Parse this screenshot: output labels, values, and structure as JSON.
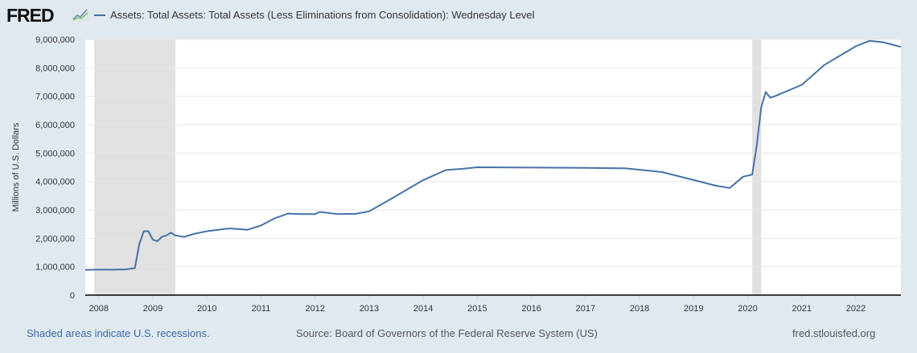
{
  "header": {
    "logo": "FRED",
    "logo_icon": "fred-chart-icon"
  },
  "footer": {
    "recession_note": "Shaded areas indicate U.S. recessions.",
    "source": "Source: Board of Governors of the Federal Reserve System (US)",
    "site": "fred.stlouisfed.org"
  },
  "colors": {
    "series": "#4572a7",
    "recession": "#e1e1e1",
    "background": "#e1e9f0",
    "link": "#3a6aa8"
  },
  "chart_data": {
    "type": "line",
    "title": "",
    "xlabel": "",
    "ylabel": "Millions of U.S. Dollars",
    "xlim": [
      "2007-10",
      "2022-11"
    ],
    "ylim": [
      0,
      9000000
    ],
    "grid": true,
    "legend_position": "top-left",
    "x_ticks": [
      "2008",
      "2009",
      "2010",
      "2011",
      "2012",
      "2013",
      "2014",
      "2015",
      "2016",
      "2017",
      "2018",
      "2019",
      "2020",
      "2021",
      "2022"
    ],
    "y_ticks": [
      "0",
      "1,000,000",
      "2,000,000",
      "3,000,000",
      "4,000,000",
      "5,000,000",
      "6,000,000",
      "7,000,000",
      "8,000,000",
      "9,000,000"
    ],
    "recessions": [
      [
        "2007-12",
        "2009-06"
      ],
      [
        "2020-02",
        "2020-04"
      ]
    ],
    "series": [
      {
        "name": "Assets: Total Assets: Total Assets (Less Eliminations from Consolidation): Wednesday Level",
        "x": [
          "2007-10",
          "2008-01",
          "2008-04",
          "2008-07",
          "2008-09",
          "2008-10",
          "2008-11",
          "2008-12",
          "2009-01",
          "2009-02",
          "2009-03",
          "2009-04",
          "2009-05",
          "2009-06",
          "2009-08",
          "2009-10",
          "2010-01",
          "2010-06",
          "2010-10",
          "2011-01",
          "2011-04",
          "2011-07",
          "2011-10",
          "2012-01",
          "2012-02",
          "2012-06",
          "2012-10",
          "2013-01",
          "2013-06",
          "2014-01",
          "2014-06",
          "2014-10",
          "2015-01",
          "2016-01",
          "2017-01",
          "2017-10",
          "2018-06",
          "2019-01",
          "2019-06",
          "2019-09",
          "2019-12",
          "2020-02",
          "2020-03",
          "2020-04",
          "2020-05",
          "2020-06",
          "2020-07",
          "2021-01",
          "2021-06",
          "2022-01",
          "2022-04",
          "2022-07",
          "2022-10",
          "2022-11"
        ],
        "y": [
          890000,
          900000,
          895000,
          905000,
          950000,
          1800000,
          2250000,
          2250000,
          1950000,
          1900000,
          2050000,
          2100000,
          2200000,
          2100000,
          2050000,
          2150000,
          2250000,
          2350000,
          2300000,
          2450000,
          2700000,
          2870000,
          2850000,
          2850000,
          2930000,
          2850000,
          2860000,
          2950000,
          3400000,
          4050000,
          4400000,
          4450000,
          4500000,
          4490000,
          4480000,
          4460000,
          4330000,
          4050000,
          3850000,
          3770000,
          4170000,
          4240000,
          5250000,
          6600000,
          7150000,
          6950000,
          7000000,
          7400000,
          8100000,
          8760000,
          8950000,
          8900000,
          8780000,
          8740000
        ]
      }
    ]
  }
}
